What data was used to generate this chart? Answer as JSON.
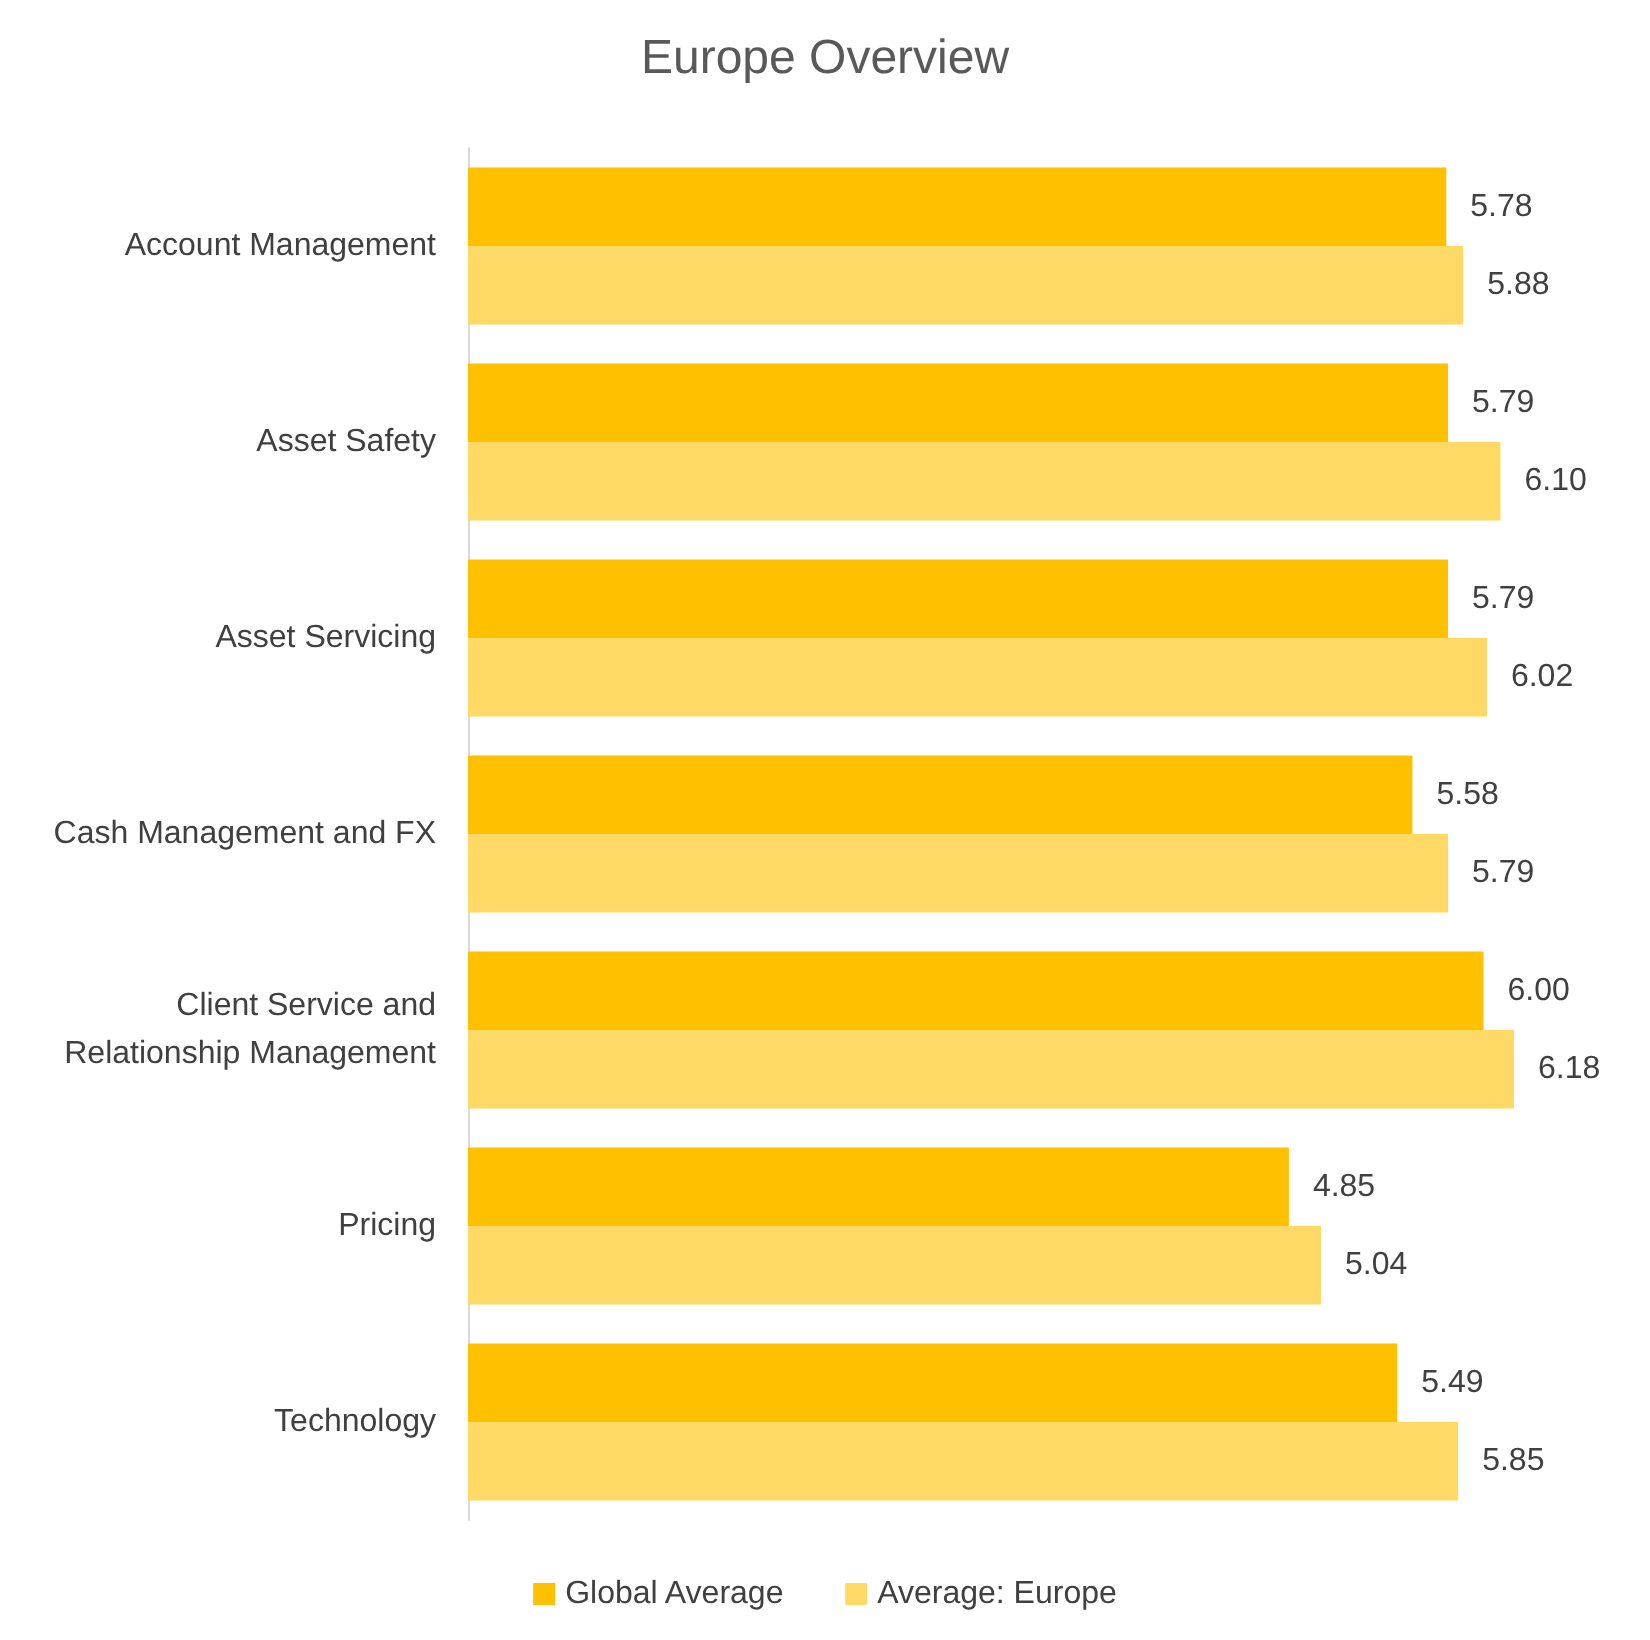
{
  "chart_data": {
    "type": "bar",
    "orientation": "horizontal",
    "title": "Europe Overview",
    "categories": [
      "Account Management",
      "Asset Safety",
      "Asset Servicing",
      "Cash Management and FX",
      "Client Service and\nRelationship Management",
      "Pricing",
      "Technology"
    ],
    "series": [
      {
        "name": "Global Average",
        "color": "#ffc000",
        "values": [
          5.78,
          5.79,
          5.79,
          5.58,
          6.0,
          4.85,
          5.49
        ],
        "value_labels": [
          "5.78",
          "5.79",
          "5.79",
          "5.58",
          "6.00",
          "4.85",
          "5.49"
        ]
      },
      {
        "name": "Average: Europe",
        "color": "#ffd966",
        "values": [
          5.88,
          6.1,
          6.02,
          5.79,
          6.18,
          5.04,
          5.85
        ],
        "value_labels": [
          "5.88",
          "6.10",
          "6.02",
          "5.79",
          "6.18",
          "5.04",
          "5.85"
        ]
      }
    ],
    "legend": "bottom"
  }
}
